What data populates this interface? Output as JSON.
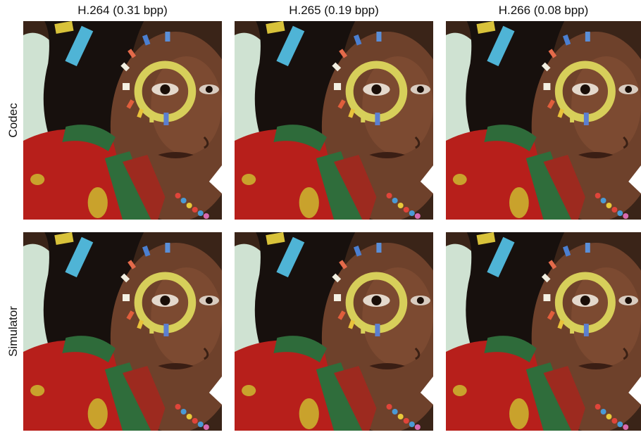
{
  "columns": [
    "H.264 (0.31 bpp)",
    "H.265 (0.19 bpp)",
    "H.266 (0.08 bpp)"
  ],
  "rows": [
    "Codec",
    "Simulator"
  ]
}
